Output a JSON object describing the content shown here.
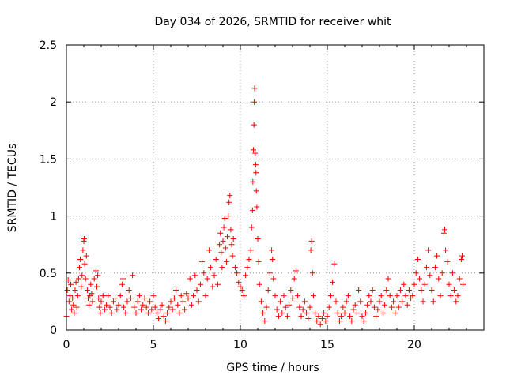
{
  "chart_data": {
    "type": "scatter",
    "title": "Day 034 of 2026, SRMTID for receiver whit",
    "xlabel": "GPS time / hours",
    "ylabel": "SRMTID / TECUs",
    "xlim": [
      0,
      24
    ],
    "ylim": [
      0,
      2.5
    ],
    "x_ticks": [
      0,
      5,
      10,
      15,
      20
    ],
    "x_tick_labels": [
      "0",
      "5",
      "10",
      "15",
      "20"
    ],
    "y_ticks": [
      0,
      0.5,
      1,
      1.5,
      2,
      2.5
    ],
    "y_tick_labels": [
      "0",
      "0.5",
      "1",
      "1.5",
      "2",
      "2.5"
    ],
    "grid": true,
    "marker": "plus",
    "color": "#ff0000",
    "series": [
      {
        "name": "SRMTID",
        "points": [
          [
            0.0,
            0.12
          ],
          [
            0.05,
            0.35
          ],
          [
            0.1,
            0.44
          ],
          [
            0.15,
            0.25
          ],
          [
            0.2,
            0.3
          ],
          [
            0.25,
            0.4
          ],
          [
            0.3,
            0.18
          ],
          [
            0.35,
            0.28
          ],
          [
            0.4,
            0.22
          ],
          [
            0.45,
            0.15
          ],
          [
            0.5,
            0.35
          ],
          [
            0.55,
            0.42
          ],
          [
            0.6,
            0.2
          ],
          [
            0.65,
            0.3
          ],
          [
            0.7,
            0.45
          ],
          [
            0.75,
            0.55
          ],
          [
            0.8,
            0.62
          ],
          [
            0.85,
            0.38
          ],
          [
            0.9,
            0.48
          ],
          [
            0.95,
            0.7
          ],
          [
            1.0,
            0.78
          ],
          [
            1.02,
            0.8
          ],
          [
            1.05,
            0.58
          ],
          [
            1.1,
            0.45
          ],
          [
            1.15,
            0.65
          ],
          [
            1.2,
            0.35
          ],
          [
            1.25,
            0.28
          ],
          [
            1.3,
            0.22
          ],
          [
            1.35,
            0.3
          ],
          [
            1.4,
            0.4
          ],
          [
            1.45,
            0.32
          ],
          [
            1.5,
            0.25
          ],
          [
            1.6,
            0.45
          ],
          [
            1.7,
            0.52
          ],
          [
            1.75,
            0.38
          ],
          [
            1.8,
            0.48
          ],
          [
            1.85,
            0.28
          ],
          [
            1.9,
            0.2
          ],
          [
            1.95,
            0.15
          ],
          [
            2.0,
            0.25
          ],
          [
            2.1,
            0.3
          ],
          [
            2.2,
            0.18
          ],
          [
            2.3,
            0.22
          ],
          [
            2.4,
            0.3
          ],
          [
            2.5,
            0.2
          ],
          [
            2.6,
            0.15
          ],
          [
            2.7,
            0.25
          ],
          [
            2.8,
            0.28
          ],
          [
            2.9,
            0.18
          ],
          [
            3.0,
            0.22
          ],
          [
            3.1,
            0.3
          ],
          [
            3.2,
            0.4
          ],
          [
            3.25,
            0.45
          ],
          [
            3.3,
            0.2
          ],
          [
            3.4,
            0.15
          ],
          [
            3.5,
            0.25
          ],
          [
            3.6,
            0.35
          ],
          [
            3.7,
            0.28
          ],
          [
            3.8,
            0.48
          ],
          [
            3.9,
            0.2
          ],
          [
            4.0,
            0.15
          ],
          [
            4.1,
            0.25
          ],
          [
            4.2,
            0.3
          ],
          [
            4.3,
            0.18
          ],
          [
            4.4,
            0.22
          ],
          [
            4.5,
            0.28
          ],
          [
            4.6,
            0.2
          ],
          [
            4.7,
            0.15
          ],
          [
            4.8,
            0.25
          ],
          [
            4.9,
            0.18
          ],
          [
            5.0,
            0.3
          ],
          [
            5.1,
            0.2
          ],
          [
            5.2,
            0.15
          ],
          [
            5.3,
            0.1
          ],
          [
            5.4,
            0.18
          ],
          [
            5.5,
            0.22
          ],
          [
            5.6,
            0.12
          ],
          [
            5.7,
            0.08
          ],
          [
            5.8,
            0.15
          ],
          [
            5.9,
            0.2
          ],
          [
            6.0,
            0.25
          ],
          [
            6.1,
            0.18
          ],
          [
            6.2,
            0.28
          ],
          [
            6.3,
            0.35
          ],
          [
            6.4,
            0.22
          ],
          [
            6.5,
            0.15
          ],
          [
            6.6,
            0.3
          ],
          [
            6.7,
            0.25
          ],
          [
            6.8,
            0.18
          ],
          [
            6.9,
            0.32
          ],
          [
            7.0,
            0.28
          ],
          [
            7.1,
            0.45
          ],
          [
            7.2,
            0.22
          ],
          [
            7.3,
            0.3
          ],
          [
            7.4,
            0.48
          ],
          [
            7.5,
            0.35
          ],
          [
            7.6,
            0.25
          ],
          [
            7.7,
            0.4
          ],
          [
            7.8,
            0.6
          ],
          [
            7.9,
            0.5
          ],
          [
            8.0,
            0.3
          ],
          [
            8.1,
            0.45
          ],
          [
            8.2,
            0.7
          ],
          [
            8.3,
            0.55
          ],
          [
            8.4,
            0.38
          ],
          [
            8.5,
            0.48
          ],
          [
            8.6,
            0.62
          ],
          [
            8.7,
            0.4
          ],
          [
            8.8,
            0.75
          ],
          [
            8.85,
            0.85
          ],
          [
            8.9,
            0.68
          ],
          [
            8.95,
            0.55
          ],
          [
            9.0,
            0.78
          ],
          [
            9.05,
            0.9
          ],
          [
            9.1,
            0.98
          ],
          [
            9.15,
            0.72
          ],
          [
            9.2,
            0.6
          ],
          [
            9.25,
            0.82
          ],
          [
            9.3,
            1.0
          ],
          [
            9.35,
            1.12
          ],
          [
            9.4,
            1.18
          ],
          [
            9.45,
            0.88
          ],
          [
            9.5,
            0.75
          ],
          [
            9.55,
            0.65
          ],
          [
            9.6,
            0.8
          ],
          [
            9.7,
            0.55
          ],
          [
            9.8,
            0.5
          ],
          [
            9.9,
            0.42
          ],
          [
            10.0,
            0.38
          ],
          [
            10.1,
            0.35
          ],
          [
            10.2,
            0.3
          ],
          [
            10.3,
            0.48
          ],
          [
            10.4,
            0.55
          ],
          [
            10.5,
            0.62
          ],
          [
            10.6,
            0.7
          ],
          [
            10.65,
            0.9
          ],
          [
            10.7,
            1.05
          ],
          [
            10.72,
            1.3
          ],
          [
            10.75,
            1.58
          ],
          [
            10.78,
            1.8
          ],
          [
            10.8,
            2.0
          ],
          [
            10.82,
            2.12
          ],
          [
            10.85,
            1.55
          ],
          [
            10.88,
            1.45
          ],
          [
            10.9,
            1.38
          ],
          [
            10.92,
            1.22
          ],
          [
            10.95,
            1.08
          ],
          [
            11.0,
            0.8
          ],
          [
            11.05,
            0.6
          ],
          [
            11.1,
            0.4
          ],
          [
            11.2,
            0.25
          ],
          [
            11.3,
            0.15
          ],
          [
            11.4,
            0.08
          ],
          [
            11.5,
            0.2
          ],
          [
            11.6,
            0.35
          ],
          [
            11.7,
            0.5
          ],
          [
            11.8,
            0.7
          ],
          [
            11.85,
            0.62
          ],
          [
            11.9,
            0.45
          ],
          [
            12.0,
            0.3
          ],
          [
            12.1,
            0.18
          ],
          [
            12.2,
            0.12
          ],
          [
            12.3,
            0.25
          ],
          [
            12.4,
            0.15
          ],
          [
            12.5,
            0.3
          ],
          [
            12.6,
            0.2
          ],
          [
            12.7,
            0.12
          ],
          [
            12.8,
            0.22
          ],
          [
            12.9,
            0.35
          ],
          [
            13.0,
            0.28
          ],
          [
            13.1,
            0.45
          ],
          [
            13.2,
            0.52
          ],
          [
            13.3,
            0.3
          ],
          [
            13.4,
            0.2
          ],
          [
            13.5,
            0.12
          ],
          [
            13.6,
            0.18
          ],
          [
            13.7,
            0.25
          ],
          [
            13.8,
            0.15
          ],
          [
            13.9,
            0.1
          ],
          [
            14.0,
            0.2
          ],
          [
            14.05,
            0.7
          ],
          [
            14.1,
            0.78
          ],
          [
            14.15,
            0.5
          ],
          [
            14.2,
            0.3
          ],
          [
            14.3,
            0.15
          ],
          [
            14.4,
            0.08
          ],
          [
            14.5,
            0.12
          ],
          [
            14.6,
            0.05
          ],
          [
            14.7,
            0.1
          ],
          [
            14.8,
            0.15
          ],
          [
            14.9,
            0.08
          ],
          [
            15.0,
            0.12
          ],
          [
            15.1,
            0.2
          ],
          [
            15.2,
            0.3
          ],
          [
            15.3,
            0.42
          ],
          [
            15.4,
            0.58
          ],
          [
            15.5,
            0.25
          ],
          [
            15.6,
            0.15
          ],
          [
            15.7,
            0.08
          ],
          [
            15.8,
            0.12
          ],
          [
            15.9,
            0.2
          ],
          [
            16.0,
            0.15
          ],
          [
            16.1,
            0.25
          ],
          [
            16.2,
            0.3
          ],
          [
            16.3,
            0.12
          ],
          [
            16.4,
            0.08
          ],
          [
            16.5,
            0.18
          ],
          [
            16.6,
            0.22
          ],
          [
            16.7,
            0.15
          ],
          [
            16.8,
            0.35
          ],
          [
            16.9,
            0.25
          ],
          [
            17.0,
            0.12
          ],
          [
            17.1,
            0.08
          ],
          [
            17.2,
            0.15
          ],
          [
            17.3,
            0.22
          ],
          [
            17.4,
            0.3
          ],
          [
            17.5,
            0.25
          ],
          [
            17.6,
            0.35
          ],
          [
            17.7,
            0.2
          ],
          [
            17.8,
            0.12
          ],
          [
            17.9,
            0.18
          ],
          [
            18.0,
            0.25
          ],
          [
            18.1,
            0.3
          ],
          [
            18.2,
            0.15
          ],
          [
            18.3,
            0.22
          ],
          [
            18.4,
            0.35
          ],
          [
            18.5,
            0.45
          ],
          [
            18.6,
            0.3
          ],
          [
            18.7,
            0.2
          ],
          [
            18.8,
            0.25
          ],
          [
            18.9,
            0.15
          ],
          [
            19.0,
            0.3
          ],
          [
            19.1,
            0.2
          ],
          [
            19.2,
            0.35
          ],
          [
            19.3,
            0.25
          ],
          [
            19.4,
            0.4
          ],
          [
            19.5,
            0.3
          ],
          [
            19.6,
            0.22
          ],
          [
            19.7,
            0.35
          ],
          [
            19.8,
            0.28
          ],
          [
            19.9,
            0.3
          ],
          [
            20.0,
            0.4
          ],
          [
            20.1,
            0.5
          ],
          [
            20.2,
            0.62
          ],
          [
            20.3,
            0.45
          ],
          [
            20.4,
            0.35
          ],
          [
            20.5,
            0.25
          ],
          [
            20.6,
            0.4
          ],
          [
            20.7,
            0.55
          ],
          [
            20.8,
            0.7
          ],
          [
            20.9,
            0.48
          ],
          [
            21.0,
            0.35
          ],
          [
            21.1,
            0.25
          ],
          [
            21.2,
            0.55
          ],
          [
            21.3,
            0.65
          ],
          [
            21.4,
            0.45
          ],
          [
            21.5,
            0.3
          ],
          [
            21.6,
            0.5
          ],
          [
            21.7,
            0.85
          ],
          [
            21.75,
            0.88
          ],
          [
            21.8,
            0.7
          ],
          [
            21.9,
            0.6
          ],
          [
            22.0,
            0.4
          ],
          [
            22.1,
            0.3
          ],
          [
            22.2,
            0.5
          ],
          [
            22.3,
            0.35
          ],
          [
            22.4,
            0.25
          ],
          [
            22.5,
            0.3
          ],
          [
            22.6,
            0.45
          ],
          [
            22.7,
            0.62
          ],
          [
            22.75,
            0.65
          ],
          [
            22.8,
            0.4
          ]
        ]
      }
    ]
  }
}
